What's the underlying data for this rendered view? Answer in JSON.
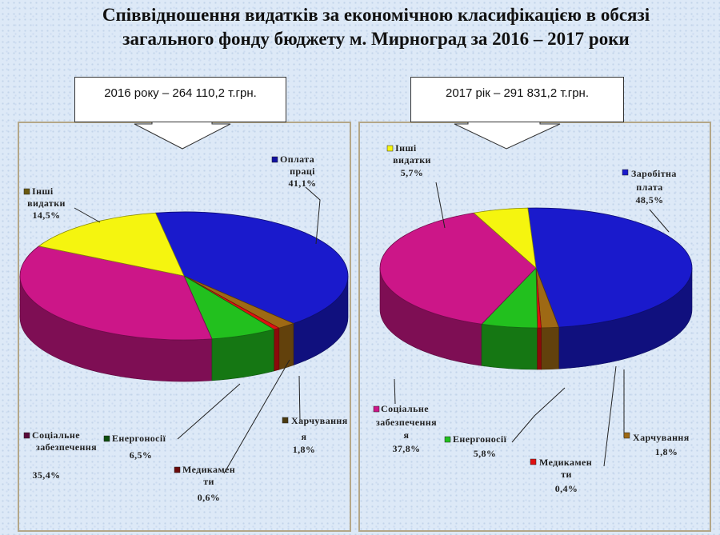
{
  "title_line1": "Співвідношення видатків за економічною класифікацією в обсязі",
  "title_line2": "загального фонду бюджету м. Мирноград за  2016 – 2017 роки",
  "chart_data": [
    {
      "type": "pie",
      "caption": "2016 року – 264 110,2 т.грн.",
      "slices": [
        {
          "label": "Оплата праці",
          "value": 41.1,
          "pct_text": "41,1%",
          "color": "#1a1acc"
        },
        {
          "label": "Харчування",
          "value": 1.8,
          "pct_text": "1,8%",
          "color": "#9e6914"
        },
        {
          "label": "Медикаменти",
          "value": 0.6,
          "pct_text": "0,6%",
          "color": "#e01010"
        },
        {
          "label": "Енергоносії",
          "value": 6.5,
          "pct_text": "6,5%",
          "color": "#22c01e"
        },
        {
          "label": "Соціальне забезпечення",
          "value": 35.4,
          "pct_text": "35,4%",
          "color": "#cc1688"
        },
        {
          "label": "Інші видатки",
          "value": 14.5,
          "pct_text": "14,5%",
          "color": "#f5f50f"
        }
      ],
      "legend_marker_colors": {
        "Оплата праці": "#1010a0",
        "Харчування": "#4a3a10",
        "Медикаменти": "#6b0b0b",
        "Енергоносії": "#0d4d0d",
        "Соціальне забезпечення": "#5a0a3a",
        "Інші видатки": "#6b5a10"
      }
    },
    {
      "type": "pie",
      "caption": "2017 рік – 291 831,2 т.грн.",
      "slices": [
        {
          "label": "Заробітна плата",
          "value": 48.5,
          "pct_text": "48,5%",
          "color": "#1a1acc"
        },
        {
          "label": "Харчування",
          "value": 1.8,
          "pct_text": "1,8%",
          "color": "#9e6914"
        },
        {
          "label": "Медикаменти",
          "value": 0.4,
          "pct_text": "0,4%",
          "color": "#e01010"
        },
        {
          "label": "Енергоносії",
          "value": 5.8,
          "pct_text": "5,8%",
          "color": "#22c01e"
        },
        {
          "label": "Соціальне забезпечення",
          "value": 37.8,
          "pct_text": "37,8%",
          "color": "#cc1688"
        },
        {
          "label": "Інші видатки",
          "value": 5.7,
          "pct_text": "5,7%",
          "color": "#f5f50f"
        }
      ],
      "legend_marker_colors": {
        "Заробітна плата": "#1a1acc",
        "Харчування": "#9e6914",
        "Медикаменти": "#e01010",
        "Енергоносії": "#22c01e",
        "Соціальне забезпечення": "#cc1688",
        "Інші видатки": "#f5f50f"
      }
    }
  ]
}
